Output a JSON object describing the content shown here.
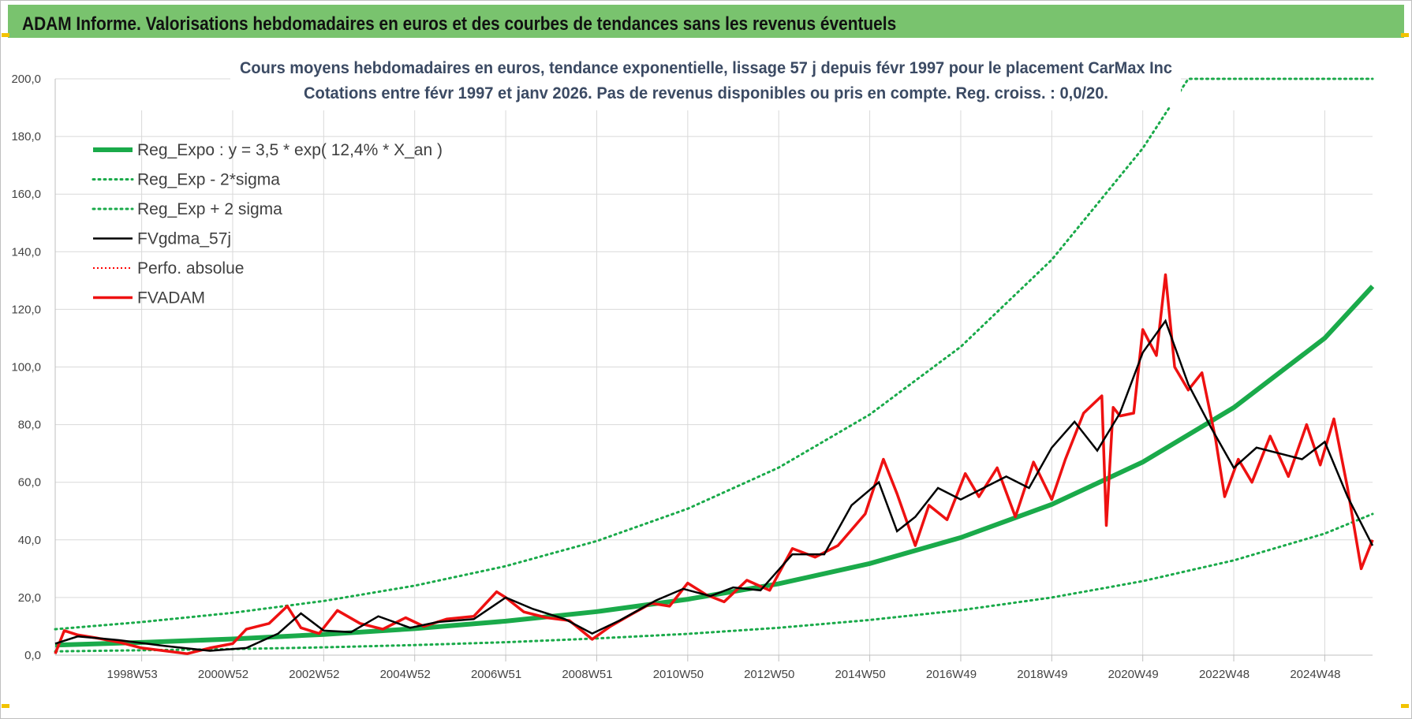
{
  "header": {
    "title": "ADAM Informe. Valorisations hebdomadaires en euros et des courbes de tendances sans les revenus éventuels"
  },
  "colors": {
    "header_bg": "#79c36e",
    "reg_expo": "#1aaa4a",
    "reg_band": "#1aaa4a",
    "fvgdma": "#000000",
    "perfo": "#ff0000",
    "fvadam": "#ee1111",
    "grid": "#d9d9d9",
    "accent_yellow": "#f2c300"
  },
  "chart_data": {
    "type": "line",
    "title": "Cours moyens hebdomadaires en euros, tendance exponentielle, lissage 57 j depuis févr 1997 pour le placement CarMax Inc",
    "subtitle": "Cotations entre févr 1997 et janv 2026. Pas de revenus disponibles ou pris en compte. Reg. croiss. : 0,0/20.",
    "xlabel": "",
    "ylabel": "",
    "x_range": [
      1997.1,
      2026.05
    ],
    "ylim": [
      0,
      200
    ],
    "grid": true,
    "legend_position": "top-left",
    "y_ticks": [
      "0,0",
      "20,0",
      "40,0",
      "60,0",
      "80,0",
      "100,0",
      "120,0",
      "140,0",
      "160,0",
      "180,0",
      "200,0"
    ],
    "x_ticks": [
      {
        "label": "1998W53",
        "x": 1999.0
      },
      {
        "label": "2000W52",
        "x": 2001.0
      },
      {
        "label": "2002W52",
        "x": 2003.0
      },
      {
        "label": "2004W52",
        "x": 2005.0
      },
      {
        "label": "2006W51",
        "x": 2007.0
      },
      {
        "label": "2008W51",
        "x": 2009.0
      },
      {
        "label": "2010W50",
        "x": 2011.0
      },
      {
        "label": "2012W50",
        "x": 2013.0
      },
      {
        "label": "2014W50",
        "x": 2015.0
      },
      {
        "label": "2016W49",
        "x": 2017.0
      },
      {
        "label": "2018W49",
        "x": 2019.0
      },
      {
        "label": "2020W49",
        "x": 2021.0
      },
      {
        "label": "2022W48",
        "x": 2023.0
      },
      {
        "label": "2024W48",
        "x": 2025.0
      }
    ],
    "series": [
      {
        "name": "Reg_Expo : y = 3,5 * exp( 12,4% *  X_an )",
        "style": "solid-thick",
        "x": [
          1997.1,
          1999,
          2001,
          2003,
          2005,
          2007,
          2009,
          2011,
          2013,
          2015,
          2017,
          2019,
          2021,
          2023,
          2025,
          2026.05
        ],
        "y": [
          3.5,
          4.4,
          5.6,
          7.2,
          9.2,
          11.8,
          15.1,
          19.4,
          24.8,
          31.8,
          40.8,
          52.3,
          67.0,
          85.9,
          110.0,
          128.0
        ]
      },
      {
        "name": "Reg_Exp - 2*sigma",
        "style": "dotted",
        "x": [
          1997.1,
          1999,
          2001,
          2003,
          2005,
          2007,
          2009,
          2011,
          2013,
          2015,
          2017,
          2019,
          2021,
          2023,
          2025,
          2026.05
        ],
        "y": [
          1.3,
          1.7,
          2.1,
          2.7,
          3.5,
          4.5,
          5.8,
          7.4,
          9.5,
          12.2,
          15.6,
          20.0,
          25.7,
          32.9,
          42.2,
          49.0
        ]
      },
      {
        "name": "Reg_Exp + 2 sigma",
        "style": "dotted",
        "x": [
          1997.1,
          1999,
          2001,
          2003,
          2005,
          2007,
          2009,
          2011,
          2013,
          2015,
          2017,
          2019,
          2021,
          2021.5,
          2022,
          2026.05
        ],
        "y": [
          9.0,
          11.5,
          14.7,
          18.8,
          24.1,
          30.9,
          39.6,
          50.8,
          65.1,
          83.5,
          107.0,
          137.2,
          175.9,
          188.0,
          200.0,
          200.0
        ]
      },
      {
        "name": "FVgdma_57j",
        "style": "solid-thin",
        "x": [
          1997.1,
          1997.6,
          1998.5,
          1999.5,
          2000.5,
          2001.3,
          2002.0,
          2002.5,
          2003.0,
          2003.6,
          2004.2,
          2004.9,
          2005.5,
          2006.3,
          2007.0,
          2007.6,
          2008.3,
          2008.9,
          2009.5,
          2010.3,
          2010.9,
          2011.5,
          2012.0,
          2012.6,
          2013.3,
          2014.0,
          2014.6,
          2015.2,
          2015.6,
          2016.0,
          2016.5,
          2017.0,
          2017.5,
          2018.0,
          2018.5,
          2019.0,
          2019.5,
          2020.0,
          2020.5,
          2021.0,
          2021.5,
          2022.0,
          2022.5,
          2023.0,
          2023.5,
          2024.0,
          2024.5,
          2025.0,
          2025.5,
          2026.05
        ],
        "y": [
          4.0,
          6.5,
          5.2,
          3.2,
          1.5,
          2.5,
          7.5,
          14.5,
          8.5,
          8.0,
          13.5,
          9.5,
          11.5,
          12.5,
          20.0,
          16.0,
          12.5,
          7.5,
          12.0,
          19.0,
          23.0,
          20.5,
          23.5,
          22.5,
          35.0,
          35.0,
          52.0,
          60.0,
          43.0,
          48.0,
          58.0,
          54.0,
          58.0,
          62.0,
          58.0,
          72.0,
          81.0,
          71.0,
          84.0,
          105.0,
          116.0,
          94.0,
          79.0,
          65.0,
          72.0,
          70.0,
          68.0,
          74.0,
          55.0,
          38.0
        ]
      },
      {
        "name": "Perfo. absolue",
        "style": "dotted-thin",
        "x": [],
        "y": []
      },
      {
        "name": "FVADAM",
        "style": "solid-red",
        "x": [
          1997.1,
          1997.3,
          1997.6,
          1998.0,
          1998.5,
          1999.0,
          1999.5,
          2000.0,
          2000.5,
          2001.0,
          2001.3,
          2001.8,
          2002.2,
          2002.5,
          2002.9,
          2003.3,
          2003.8,
          2004.3,
          2004.8,
          2005.2,
          2005.7,
          2006.3,
          2006.8,
          2007.0,
          2007.4,
          2007.9,
          2008.4,
          2008.9,
          2009.3,
          2009.8,
          2010.2,
          2010.6,
          2011.0,
          2011.4,
          2011.8,
          2012.3,
          2012.8,
          2013.3,
          2013.8,
          2014.3,
          2014.9,
          2015.3,
          2015.6,
          2016.0,
          2016.3,
          2016.7,
          2017.1,
          2017.4,
          2017.8,
          2018.2,
          2018.6,
          2019.0,
          2019.3,
          2019.7,
          2020.1,
          2020.2,
          2020.35,
          2020.5,
          2020.8,
          2021.0,
          2021.3,
          2021.5,
          2021.7,
          2022.0,
          2022.3,
          2022.6,
          2022.8,
          2023.1,
          2023.4,
          2023.8,
          2024.2,
          2024.6,
          2024.9,
          2025.2,
          2025.5,
          2025.8,
          2026.05
        ],
        "y": [
          0.5,
          8.5,
          7.0,
          6.0,
          4.5,
          2.5,
          1.5,
          0.5,
          2.5,
          4.0,
          9.0,
          11.0,
          17.0,
          9.5,
          7.5,
          15.5,
          11.0,
          9.0,
          13.0,
          10.0,
          12.5,
          13.5,
          22.0,
          20.0,
          15.0,
          13.0,
          12.0,
          5.5,
          10.0,
          14.5,
          18.0,
          17.0,
          25.0,
          21.0,
          18.5,
          26.0,
          22.5,
          37.0,
          34.0,
          38.0,
          49.0,
          68.0,
          56.0,
          38.0,
          52.0,
          47.0,
          63.0,
          55.0,
          65.0,
          48.0,
          67.0,
          54.0,
          68.0,
          84.0,
          90.0,
          45.0,
          86.0,
          83.0,
          84.0,
          113.0,
          104.0,
          132.0,
          100.0,
          92.0,
          98.0,
          75.0,
          55.0,
          68.0,
          60.0,
          76.0,
          62.0,
          80.0,
          66.0,
          82.0,
          58.0,
          30.0,
          40.0
        ]
      }
    ]
  }
}
